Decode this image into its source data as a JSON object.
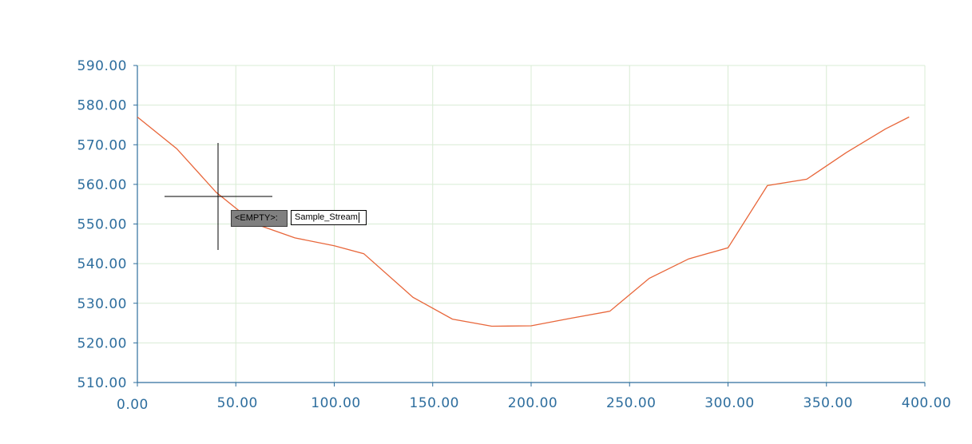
{
  "chart_data": {
    "type": "line",
    "x": [
      0,
      20,
      40,
      60,
      80,
      100,
      115,
      140,
      160,
      180,
      200,
      220,
      240,
      260,
      280,
      300,
      320,
      340,
      360,
      380,
      392
    ],
    "series": [
      {
        "values": [
          577,
          569,
          558,
          550,
          546.5,
          544.5,
          542.5,
          531.5,
          526,
          524.2,
          524.3,
          526.2,
          528,
          536.3,
          541.2,
          544,
          559.7,
          561.3,
          568,
          574,
          577
        ]
      }
    ],
    "xlim": [
      0,
      400
    ],
    "ylim": [
      510,
      590
    ],
    "x_ticks": [
      0,
      50,
      100,
      150,
      200,
      250,
      300,
      350,
      400
    ],
    "y_ticks": [
      510,
      520,
      530,
      540,
      550,
      560,
      570,
      580,
      590
    ],
    "x_tick_labels": [
      "0.00",
      "50.00",
      "100.00",
      "150.00",
      "200.00",
      "250.00",
      "300.00",
      "350.00",
      "400.00"
    ],
    "y_tick_labels": [
      "510.00",
      "520.00",
      "530.00",
      "540.00",
      "550.00",
      "560.00",
      "570.00",
      "580.00",
      "590.00"
    ],
    "grid": true,
    "colors": {
      "line": "#e8663a",
      "grid": "#d8ecd4",
      "axis": "#2e6e9e",
      "cursor": "#000000"
    }
  },
  "command_prompt": {
    "label": "<EMPTY>:",
    "input_value": "Sample_Stream"
  }
}
